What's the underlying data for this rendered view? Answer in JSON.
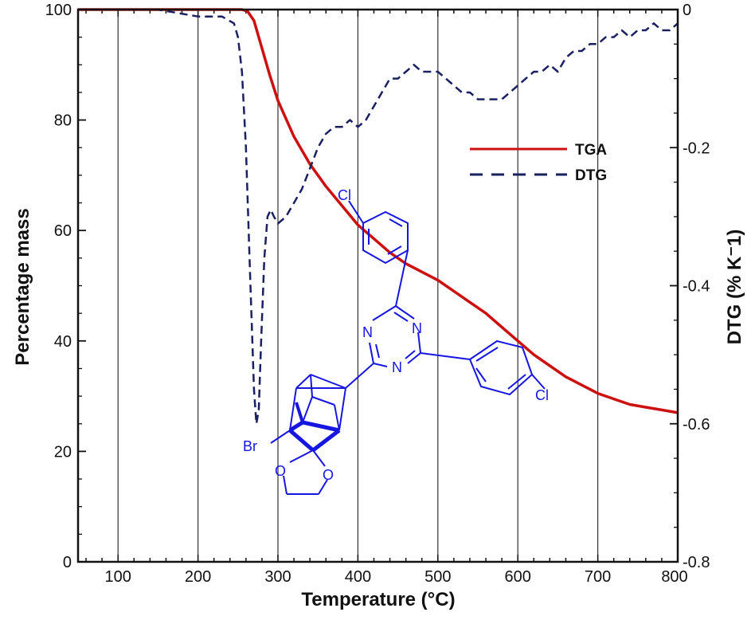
{
  "chart_data": {
    "type": "line",
    "title": "",
    "xlabel": "Temperature (°C)",
    "ylabel": "Percentage mass",
    "y2label": "DTG (% K⁻1)",
    "xlim": [
      50,
      800
    ],
    "ylim": [
      0,
      100
    ],
    "y2lim": [
      -0.8,
      0
    ],
    "x_ticks": [
      "100",
      "200",
      "300",
      "400",
      "500",
      "600",
      "700",
      "800"
    ],
    "y_ticks": [
      "0",
      "20",
      "40",
      "60",
      "80",
      "100"
    ],
    "y2_ticks": [
      "0",
      "-0.2",
      "-0.4",
      "-0.6",
      "-0.8"
    ],
    "grid": "vertical",
    "legend_position": "top-right",
    "series": [
      {
        "name": "TGA",
        "axis": "left",
        "style": "solid",
        "color": "#cc1111",
        "x": [
          50,
          100,
          150,
          200,
          240,
          255,
          262,
          270,
          280,
          290,
          300,
          320,
          340,
          360,
          380,
          400,
          420,
          440,
          460,
          480,
          500,
          520,
          540,
          560,
          580,
          600,
          620,
          640,
          660,
          680,
          700,
          720,
          740,
          760,
          780,
          800
        ],
        "y": [
          100,
          100,
          100,
          100,
          100,
          100,
          99.7,
          98,
          93,
          88,
          83.5,
          77,
          72,
          68,
          64.5,
          61,
          58.5,
          56,
          54,
          52.5,
          51,
          49,
          47,
          45,
          42.5,
          40,
          37.5,
          35.5,
          33.5,
          32,
          30.5,
          29.5,
          28.5,
          28,
          27.5,
          27
        ]
      },
      {
        "name": "DTG",
        "axis": "right",
        "style": "dashed",
        "color": "#1a2060",
        "x": [
          50,
          100,
          150,
          200,
          230,
          245,
          250,
          255,
          260,
          265,
          270,
          273,
          276,
          279,
          283,
          287,
          291,
          295,
          300,
          310,
          320,
          330,
          340,
          350,
          360,
          370,
          380,
          390,
          400,
          410,
          420,
          430,
          440,
          450,
          460,
          470,
          480,
          490,
          500,
          510,
          520,
          530,
          540,
          550,
          560,
          570,
          580,
          590,
          600,
          610,
          620,
          630,
          640,
          650,
          660,
          670,
          680,
          690,
          700,
          710,
          720,
          730,
          740,
          750,
          760,
          770,
          780,
          790,
          800
        ],
        "y": [
          0,
          0,
          0,
          -0.01,
          -0.01,
          -0.02,
          -0.04,
          -0.09,
          -0.2,
          -0.38,
          -0.55,
          -0.6,
          -0.58,
          -0.48,
          -0.36,
          -0.3,
          -0.29,
          -0.3,
          -0.31,
          -0.3,
          -0.28,
          -0.26,
          -0.23,
          -0.2,
          -0.18,
          -0.17,
          -0.17,
          -0.16,
          -0.17,
          -0.16,
          -0.14,
          -0.12,
          -0.1,
          -0.1,
          -0.09,
          -0.08,
          -0.09,
          -0.09,
          -0.09,
          -0.1,
          -0.11,
          -0.12,
          -0.12,
          -0.13,
          -0.13,
          -0.13,
          -0.13,
          -0.12,
          -0.11,
          -0.1,
          -0.09,
          -0.09,
          -0.08,
          -0.09,
          -0.07,
          -0.06,
          -0.06,
          -0.05,
          -0.05,
          -0.04,
          -0.04,
          -0.03,
          -0.04,
          -0.03,
          -0.03,
          -0.02,
          -0.03,
          -0.03,
          -0.02
        ]
      }
    ]
  },
  "structure_labels": {
    "cl_top": "Cl",
    "cl_right": "Cl",
    "br": "Br",
    "n1": "N",
    "n2": "N",
    "n3": "N",
    "o1": "O",
    "o2": "O"
  },
  "colors": {
    "structure": "#1616e0",
    "grid": "#333333",
    "axis": "#111111"
  }
}
